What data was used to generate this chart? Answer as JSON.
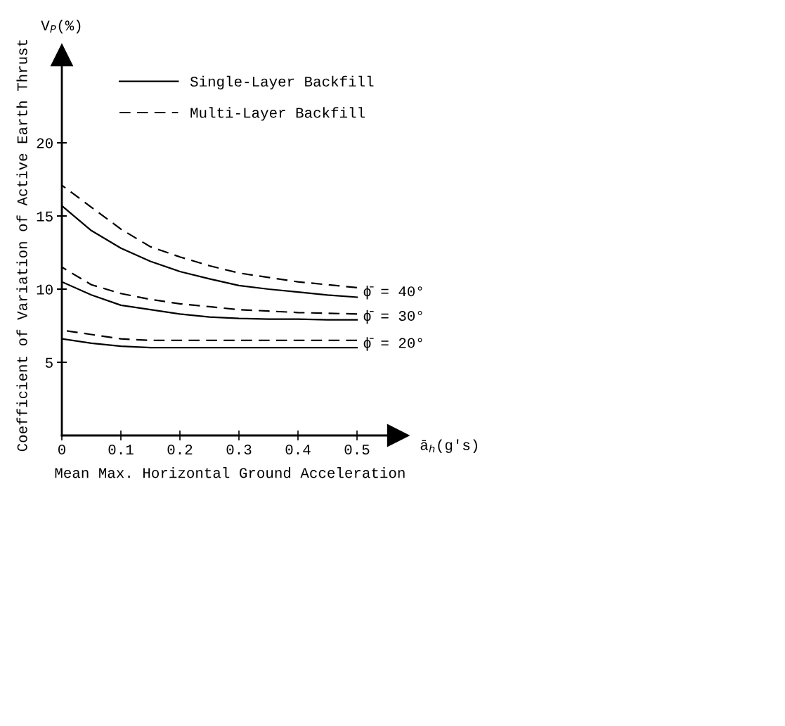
{
  "chart_data": {
    "type": "line",
    "xlabel": "Mean Max. Horizontal Ground Acceleration",
    "ylabel": "Coefficient of Variation of Active Earth Thrust",
    "x": [
      0,
      0.05,
      0.1,
      0.15,
      0.2,
      0.25,
      0.3,
      0.35,
      0.4,
      0.45,
      0.5
    ],
    "series": [
      {
        "name": "Single-Layer Backfill",
        "color": "#000000",
        "line_style": "solid",
        "values": [
          15.7,
          14.0,
          12.8,
          11.9,
          11.2,
          10.7,
          10.25,
          10.0,
          9.8,
          9.6,
          9.45
        ]
      },
      {
        "name": "Multi-Layer Backfill",
        "color": "#000000",
        "line_style": "dashed",
        "values": [
          17.1,
          15.6,
          14.1,
          12.9,
          12.2,
          11.6,
          11.1,
          10.8,
          10.5,
          10.3,
          10.1
        ]
      },
      {
        "color": "#000000",
        "line_style": "solid",
        "values": [
          10.5,
          9.6,
          8.9,
          8.6,
          8.3,
          8.1,
          8.0,
          7.95,
          7.95,
          7.9,
          7.9
        ]
      },
      {
        "color": "#000000",
        "line_style": "dashed",
        "values": [
          11.5,
          10.3,
          9.7,
          9.3,
          9.0,
          8.8,
          8.6,
          8.5,
          8.4,
          8.35,
          8.3
        ]
      },
      {
        "color": "#000000",
        "line_style": "solid",
        "values": [
          6.6,
          6.3,
          6.1,
          6.0,
          6.0,
          6.0,
          6.0,
          6.0,
          6.0,
          6.0,
          6.0
        ]
      },
      {
        "color": "#000000",
        "line_style": "dashed",
        "values": [
          7.2,
          6.9,
          6.6,
          6.5,
          6.5,
          6.5,
          6.5,
          6.5,
          6.5,
          6.5,
          6.5
        ]
      }
    ],
    "xlim": [
      0,
      0.57
    ],
    "ylim": [
      0,
      26
    ],
    "xticks": [
      0,
      0.1,
      0.2,
      0.3,
      0.4,
      0.5
    ],
    "yticks": [
      5,
      10,
      15,
      20
    ],
    "grid": false,
    "legend": "top",
    "marker": "none",
    "annotations": [
      "V$_{P}$(%)",
      "ā$_{h}$(g's)",
      "ϕ̄ = 40°",
      "ϕ̄ = 30°",
      "ϕ̄ = 20°"
    ]
  }
}
